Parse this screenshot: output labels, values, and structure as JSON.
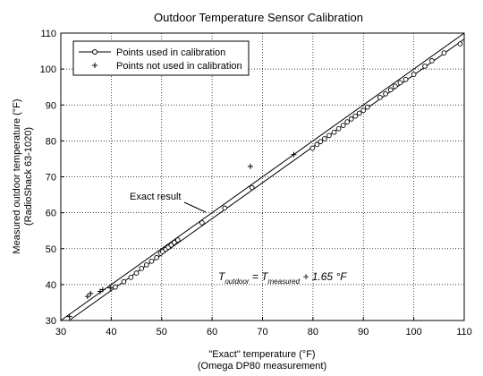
{
  "chart_data": {
    "type": "scatter",
    "title": "Outdoor Temperature Sensor Calibration",
    "xlabel": "\"Exact\" temperature (°F)",
    "xlabel_sub": "(Omega DP80 measurement)",
    "ylabel": "Measured outdoor temperature (°F)",
    "ylabel_sub": "(RadioShack 63-1020)",
    "xlim": [
      30,
      110
    ],
    "ylim": [
      30,
      110
    ],
    "xticks": [
      "30",
      "40",
      "50",
      "60",
      "70",
      "80",
      "90",
      "100",
      "110"
    ],
    "yticks": [
      "30",
      "40",
      "50",
      "60",
      "70",
      "80",
      "90",
      "100",
      "110"
    ],
    "grid": true,
    "legend": {
      "placement": "top-left",
      "entries": [
        "Points used in calibration",
        "Points not used in calibration"
      ]
    },
    "lines": [
      {
        "name": "Exact result",
        "x": [
          30,
          110
        ],
        "y": [
          30,
          110
        ]
      },
      {
        "x": [
          30,
          110
        ],
        "y": [
          28.35,
          108.35
        ]
      }
    ],
    "annotations": {
      "exact_label": "Exact result",
      "formula": {
        "lhs": "T",
        "lhs_sub": "outdoor",
        "eq": " = T",
        "rhs_sub": "measured",
        "tail": " + 1.65 °F"
      }
    },
    "series": [
      {
        "name": "Points used in calibration",
        "marker": "circle",
        "x": [
          40.8,
          42.5,
          43.9,
          45.0,
          46.0,
          47.0,
          48.0,
          49.0,
          49.8,
          50.2,
          50.8,
          51.3,
          51.9,
          52.5,
          53.2,
          58.0,
          62.5,
          67.9,
          79.9,
          80.8,
          81.5,
          82.3,
          83.2,
          84.2,
          85.1,
          86.0,
          86.8,
          87.6,
          88.4,
          89.2,
          90.0,
          90.8,
          93.3,
          94.4,
          95.4,
          96.3,
          97.3,
          98.4,
          100.0,
          102.2,
          103.6,
          106.0,
          109.2
        ],
        "y": [
          39.3,
          40.8,
          42.0,
          43.2,
          44.5,
          45.5,
          46.5,
          47.5,
          48.7,
          49.2,
          49.8,
          50.4,
          51.0,
          51.7,
          52.4,
          57.2,
          61.3,
          67.0,
          78.0,
          79.0,
          79.8,
          80.6,
          81.5,
          82.4,
          83.4,
          84.3,
          85.3,
          86.1,
          86.9,
          87.7,
          88.5,
          89.4,
          92.1,
          93.1,
          94.2,
          95.2,
          96.2,
          97.1,
          98.5,
          100.8,
          102.3,
          104.5,
          107.0
        ]
      },
      {
        "name": "Points not used in calibration",
        "marker": "plus",
        "x": [
          31.7,
          35.3,
          35.9,
          37.8,
          38.3,
          39.8,
          67.6,
          76.2
        ],
        "y": [
          31.1,
          36.7,
          37.5,
          38.1,
          38.6,
          39.1,
          72.9,
          76.2
        ]
      }
    ]
  }
}
